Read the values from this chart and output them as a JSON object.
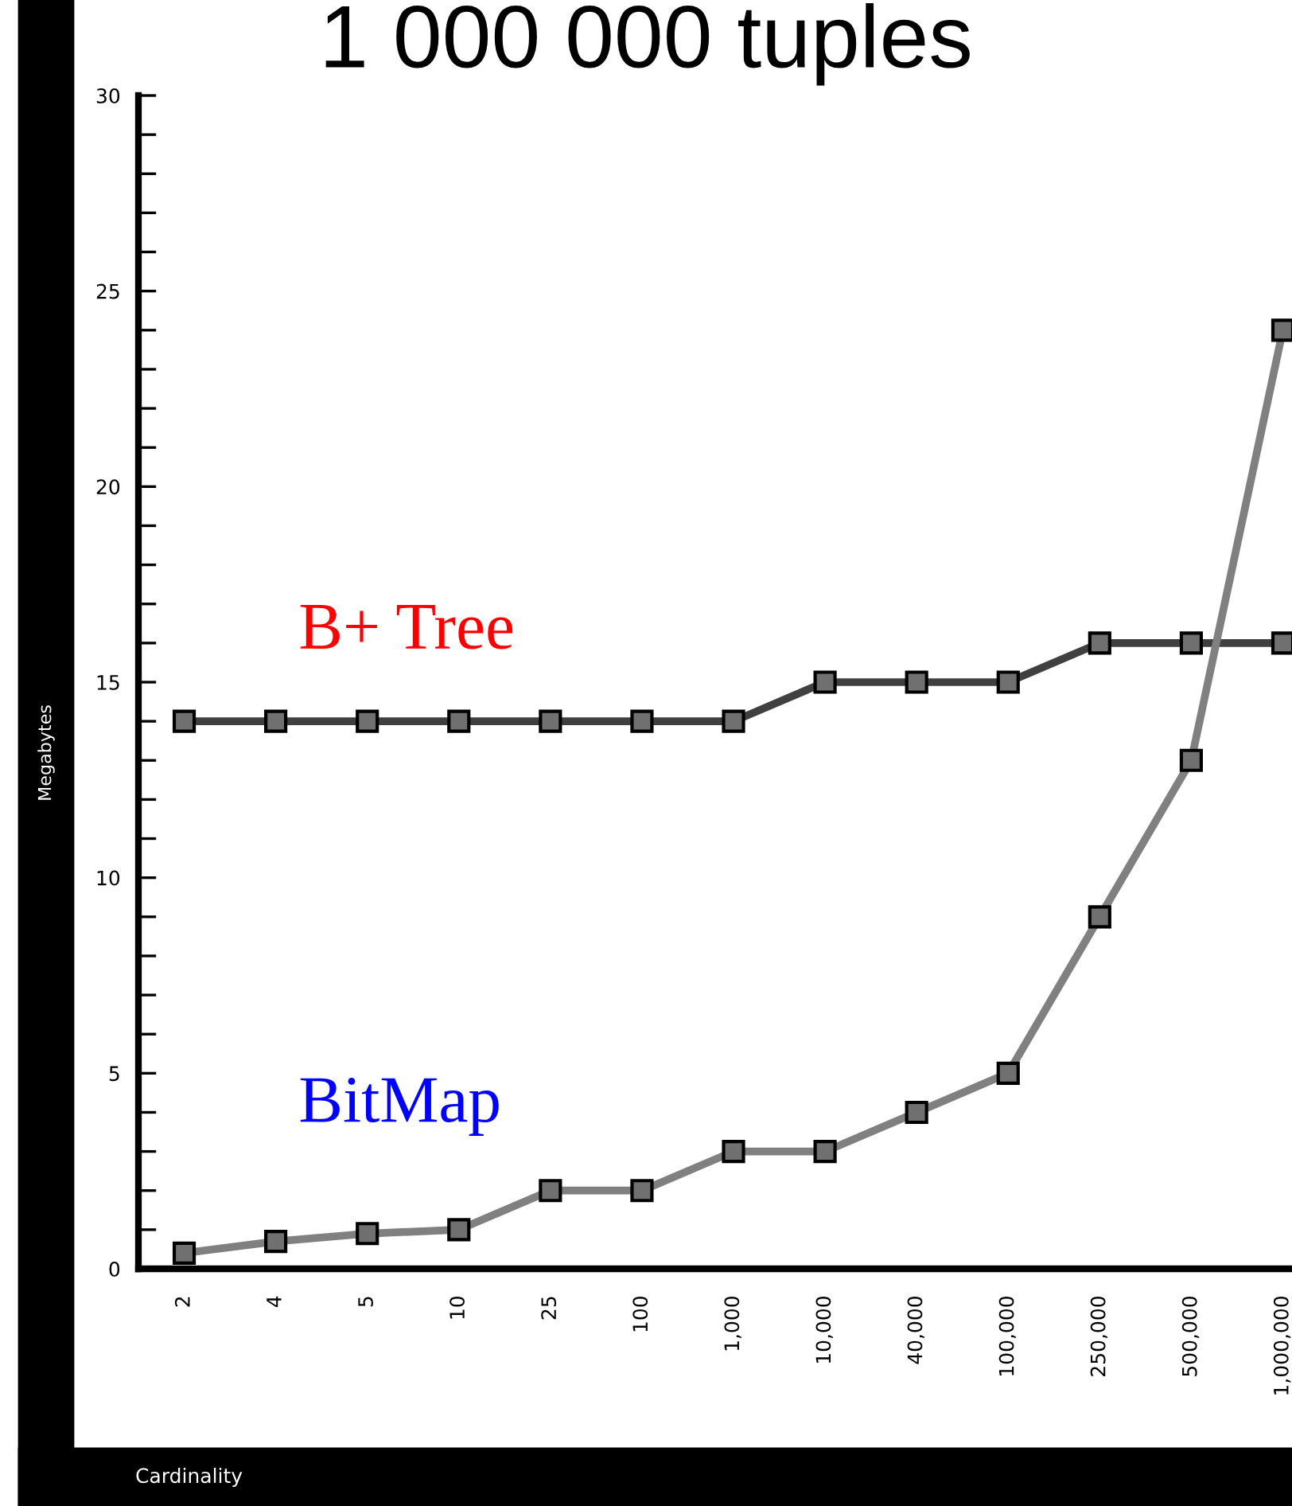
{
  "chart_data": {
    "type": "line",
    "title": "1 000 000 tuples",
    "xlabel": "Cardinality",
    "ylabel": "Megabytes",
    "categories": [
      "2",
      "4",
      "5",
      "10",
      "25",
      "100",
      "1,000",
      "10,000",
      "40,000",
      "100,000",
      "250,000",
      "500,000",
      "1,000,000"
    ],
    "series": [
      {
        "name": "B+ Tree",
        "color": "#404040",
        "values": [
          14,
          14,
          14,
          14,
          14,
          14,
          14,
          15,
          15,
          15,
          16,
          16,
          16
        ]
      },
      {
        "name": "BitMap",
        "color": "#808080",
        "values": [
          0.4,
          0.7,
          0.9,
          1.0,
          2,
          2,
          3,
          3,
          4,
          5,
          9,
          13,
          24
        ]
      }
    ],
    "ylim": [
      0,
      30
    ],
    "yticks": [
      0,
      {
        "value": 1,
        "label": null
      },
      {
        "value": 2,
        "label": null
      },
      {
        "value": 3,
        "label": null
      },
      {
        "value": 4,
        "label": null
      },
      5,
      {
        "value": 6,
        "label": null
      },
      {
        "value": 7,
        "label": null
      },
      {
        "value": 8,
        "label": null
      },
      {
        "value": 9,
        "label": null
      },
      10,
      {
        "value": 11,
        "label": null
      },
      {
        "value": 12,
        "label": null
      },
      {
        "value": 13,
        "label": null
      },
      {
        "value": 14,
        "label": null
      },
      15,
      {
        "value": 16,
        "label": null
      },
      {
        "value": 17,
        "label": null
      },
      {
        "value": 18,
        "label": null
      },
      {
        "value": 19,
        "label": null
      },
      20,
      {
        "value": 21,
        "label": null
      },
      {
        "value": 22,
        "label": null
      },
      {
        "value": 23,
        "label": null
      },
      {
        "value": 24,
        "label": null
      },
      25,
      {
        "value": 26,
        "label": null
      },
      {
        "value": 27,
        "label": null
      },
      {
        "value": 28,
        "label": null
      },
      {
        "value": 29,
        "label": null
      },
      30
    ],
    "marker": "square",
    "line_style": "solid",
    "grid": false,
    "legend": "left"
  }
}
